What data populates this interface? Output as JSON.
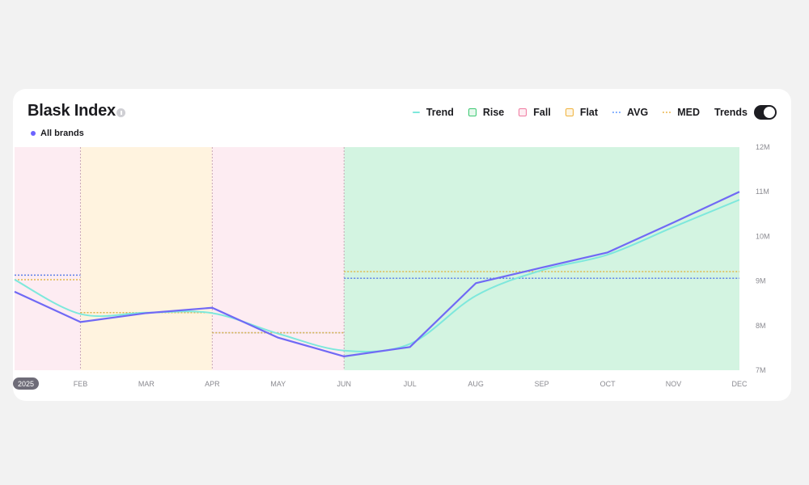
{
  "header": {
    "title": "Blask Index",
    "brand_label": "All brands",
    "brand_color": "#6c63ff"
  },
  "legend": {
    "items": [
      {
        "label": "Trend",
        "kind": "line",
        "color": "#7ee8dc"
      },
      {
        "label": "Rise",
        "kind": "box",
        "color": "#3cc872"
      },
      {
        "label": "Fall",
        "kind": "box",
        "color": "#f07aa0"
      },
      {
        "label": "Flat",
        "kind": "box",
        "color": "#f0b33c"
      },
      {
        "label": "AVG",
        "kind": "dash",
        "color": "#8ab4ff"
      },
      {
        "label": "MED",
        "kind": "dash",
        "color": "#f0c87a"
      }
    ],
    "toggle_label": "Trends",
    "toggle_on": true
  },
  "chart_data": {
    "type": "line",
    "x": [
      "2025",
      "FEB",
      "MAR",
      "APR",
      "MAY",
      "JUN",
      "JUL",
      "AUG",
      "SEP",
      "OCT",
      "NOV",
      "DEC"
    ],
    "y_ticks": [
      "12M",
      "11M",
      "10M",
      "9M",
      "8M",
      "7M"
    ],
    "ylim": [
      7000000,
      12000000
    ],
    "series": [
      {
        "name": "All brands",
        "color": "#7069f5",
        "values": [
          8760000,
          8080000,
          8280000,
          8400000,
          7730000,
          7310000,
          7520000,
          8950000,
          9300000,
          9640000,
          10310000,
          11000000
        ]
      },
      {
        "name": "Trend",
        "color": "#7ee8dc",
        "values": [
          9030000,
          8260000,
          8290000,
          8280000,
          7820000,
          7440000,
          7590000,
          8670000,
          9240000,
          9590000,
          10210000,
          10820000
        ]
      }
    ],
    "regions": [
      {
        "from": 0,
        "to": 1,
        "trend": "Fall",
        "avg": 9130000,
        "med": 9030000
      },
      {
        "from": 1,
        "to": 3,
        "trend": "Flat",
        "avg": 8290000,
        "med": 8290000
      },
      {
        "from": 3,
        "to": 5,
        "trend": "Fall",
        "avg": 7840000,
        "med": 7840000
      },
      {
        "from": 5,
        "to": 11,
        "trend": "Rise",
        "avg": 9060000,
        "med": 9210000
      }
    ],
    "region_colors": {
      "Fall": "#fdecf2",
      "Flat": "#fff3df",
      "Rise": "#d3f4e1"
    },
    "avg_color": "#5b7ee8",
    "med_color": "#e0b84a",
    "grid": false
  }
}
